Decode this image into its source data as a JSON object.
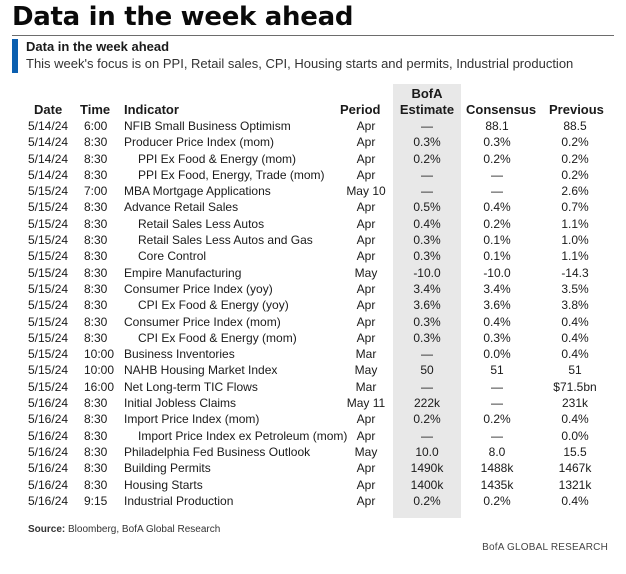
{
  "page": {
    "title": "Data in the week ahead",
    "subhead": "Data in the week ahead",
    "subtitle": "This week's focus is on PPI, Retail sales, CPI, Housing starts and permits, Industrial production"
  },
  "table": {
    "headers": {
      "date": "Date",
      "time": "Time",
      "indicator": "Indicator",
      "period": "Period",
      "estimate_line1": "BofA",
      "estimate_line2": "Estimate",
      "consensus": "Consensus",
      "previous": "Previous"
    },
    "rows": [
      {
        "date": "5/14/24",
        "time": "6:00",
        "indicator": "NFIB Small Business Optimism",
        "indent": false,
        "period": "Apr",
        "estimate": "—",
        "consensus": "88.1",
        "previous": "88.5"
      },
      {
        "date": "5/14/24",
        "time": "8:30",
        "indicator": "Producer Price Index (mom)",
        "indent": false,
        "period": "Apr",
        "estimate": "0.3%",
        "consensus": "0.3%",
        "previous": "0.2%"
      },
      {
        "date": "5/14/24",
        "time": "8:30",
        "indicator": "PPI Ex Food & Energy (mom)",
        "indent": true,
        "period": "Apr",
        "estimate": "0.2%",
        "consensus": "0.2%",
        "previous": "0.2%"
      },
      {
        "date": "5/14/24",
        "time": "8:30",
        "indicator": "PPI Ex Food, Energy, Trade (mom)",
        "indent": true,
        "period": "Apr",
        "estimate": "—",
        "consensus": "—",
        "previous": "0.2%"
      },
      {
        "date": "5/15/24",
        "time": "7:00",
        "indicator": "MBA Mortgage Applications",
        "indent": false,
        "period": "May 10",
        "estimate": "—",
        "consensus": "—",
        "previous": "2.6%"
      },
      {
        "date": "5/15/24",
        "time": "8:30",
        "indicator": "Advance Retail Sales",
        "indent": false,
        "period": "Apr",
        "estimate": "0.5%",
        "consensus": "0.4%",
        "previous": "0.7%"
      },
      {
        "date": "5/15/24",
        "time": "8:30",
        "indicator": "Retail Sales Less Autos",
        "indent": true,
        "period": "Apr",
        "estimate": "0.4%",
        "consensus": "0.2%",
        "previous": "1.1%"
      },
      {
        "date": "5/15/24",
        "time": "8:30",
        "indicator": "Retail Sales Less Autos and Gas",
        "indent": true,
        "period": "Apr",
        "estimate": "0.3%",
        "consensus": "0.1%",
        "previous": "1.0%"
      },
      {
        "date": "5/15/24",
        "time": "8:30",
        "indicator": "Core Control",
        "indent": true,
        "period": "Apr",
        "estimate": "0.3%",
        "consensus": "0.1%",
        "previous": "1.1%"
      },
      {
        "date": "5/15/24",
        "time": "8:30",
        "indicator": "Empire Manufacturing",
        "indent": false,
        "period": "May",
        "estimate": "-10.0",
        "consensus": "-10.0",
        "previous": "-14.3"
      },
      {
        "date": "5/15/24",
        "time": "8:30",
        "indicator": "Consumer Price Index (yoy)",
        "indent": false,
        "period": "Apr",
        "estimate": "3.4%",
        "consensus": "3.4%",
        "previous": "3.5%"
      },
      {
        "date": "5/15/24",
        "time": "8:30",
        "indicator": "CPI Ex Food & Energy (yoy)",
        "indent": true,
        "period": "Apr",
        "estimate": "3.6%",
        "consensus": "3.6%",
        "previous": "3.8%"
      },
      {
        "date": "5/15/24",
        "time": "8:30",
        "indicator": "Consumer Price Index (mom)",
        "indent": false,
        "period": "Apr",
        "estimate": "0.3%",
        "consensus": "0.4%",
        "previous": "0.4%"
      },
      {
        "date": "5/15/24",
        "time": "8:30",
        "indicator": "CPI Ex Food & Energy (mom)",
        "indent": true,
        "period": "Apr",
        "estimate": "0.3%",
        "consensus": "0.3%",
        "previous": "0.4%"
      },
      {
        "date": "5/15/24",
        "time": "10:00",
        "indicator": "Business Inventories",
        "indent": false,
        "period": "Mar",
        "estimate": "—",
        "consensus": "0.0%",
        "previous": "0.4%"
      },
      {
        "date": "5/15/24",
        "time": "10:00",
        "indicator": "NAHB Housing Market Index",
        "indent": false,
        "period": "May",
        "estimate": "50",
        "consensus": "51",
        "previous": "51"
      },
      {
        "date": "5/15/24",
        "time": "16:00",
        "indicator": "Net Long-term TIC Flows",
        "indent": false,
        "period": "Mar",
        "estimate": "—",
        "consensus": "—",
        "previous": "$71.5bn"
      },
      {
        "date": "5/16/24",
        "time": "8:30",
        "indicator": "Initial Jobless Claims",
        "indent": false,
        "period": "May 11",
        "estimate": "222k",
        "consensus": "—",
        "previous": "231k"
      },
      {
        "date": "5/16/24",
        "time": "8:30",
        "indicator": "Import Price Index (mom)",
        "indent": false,
        "period": "Apr",
        "estimate": "0.2%",
        "consensus": "0.2%",
        "previous": "0.4%"
      },
      {
        "date": "5/16/24",
        "time": "8:30",
        "indicator": "Import Price Index ex Petroleum (mom)",
        "indent": true,
        "period": "Apr",
        "estimate": "—",
        "consensus": "—",
        "previous": "0.0%"
      },
      {
        "date": "5/16/24",
        "time": "8:30",
        "indicator": "Philadelphia Fed Business Outlook",
        "indent": false,
        "period": "May",
        "estimate": "10.0",
        "consensus": "8.0",
        "previous": "15.5"
      },
      {
        "date": "5/16/24",
        "time": "8:30",
        "indicator": "Building Permits",
        "indent": false,
        "period": "Apr",
        "estimate": "1490k",
        "consensus": "1488k",
        "previous": "1467k"
      },
      {
        "date": "5/16/24",
        "time": "8:30",
        "indicator": "Housing Starts",
        "indent": false,
        "period": "Apr",
        "estimate": "1400k",
        "consensus": "1435k",
        "previous": "1321k"
      },
      {
        "date": "5/16/24",
        "time": "9:15",
        "indicator": "Industrial Production",
        "indent": false,
        "period": "Apr",
        "estimate": "0.2%",
        "consensus": "0.2%",
        "previous": "0.4%"
      }
    ]
  },
  "source": {
    "label": "Source:",
    "text": " Bloomberg, BofA Global Research"
  },
  "footer": "BofA GLOBAL RESEARCH",
  "colors": {
    "accent": "#0b5fb0",
    "estimate_shade": "#e8e8e8"
  }
}
